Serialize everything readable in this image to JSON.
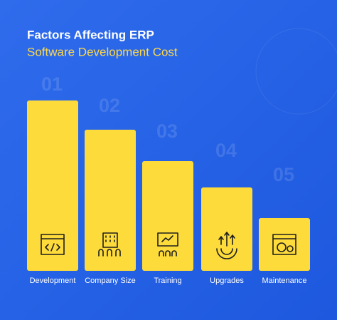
{
  "header": {
    "title": "Factors Affecting ERP",
    "subtitle": "Software Development Cost"
  },
  "items": [
    {
      "number": "01",
      "label": "Development"
    },
    {
      "number": "02",
      "label": "Company Size"
    },
    {
      "number": "03",
      "label": "Training"
    },
    {
      "number": "04",
      "label": "Upgrades"
    },
    {
      "number": "05",
      "label": "Maintenance"
    }
  ]
}
